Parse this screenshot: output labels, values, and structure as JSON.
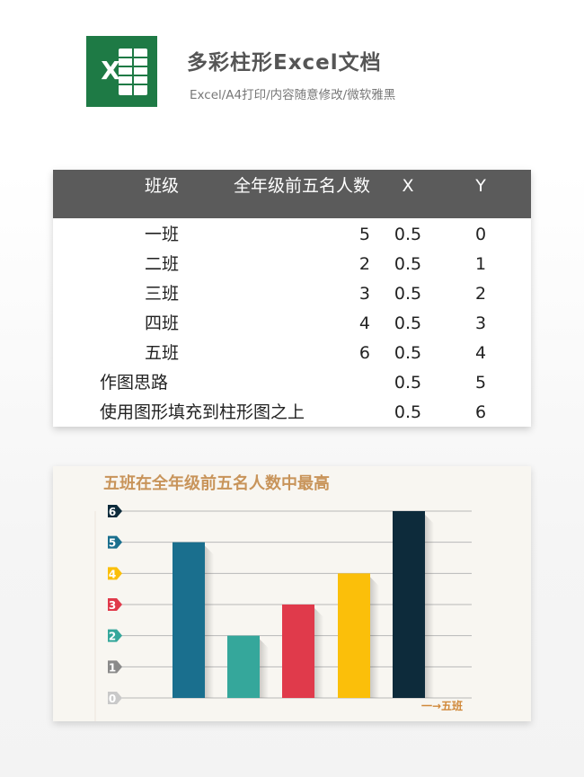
{
  "header": {
    "title": "多彩柱形Excel文档",
    "subtitle": "Excel/A4打印/内容随意修改/微软雅黑",
    "logo_letter": "X",
    "logo_color": "#1e7a45"
  },
  "table": {
    "columns": [
      "班级",
      "全年级前五名人数",
      "X",
      "Y"
    ],
    "rows": [
      {
        "class": "一班",
        "count": "5",
        "x": "0.5",
        "y": "0"
      },
      {
        "class": "二班",
        "count": "2",
        "x": "0.5",
        "y": "1"
      },
      {
        "class": "三班",
        "count": "3",
        "x": "0.5",
        "y": "2"
      },
      {
        "class": "四班",
        "count": "4",
        "x": "0.5",
        "y": "3"
      },
      {
        "class": "五班",
        "count": "6",
        "x": "0.5",
        "y": "4"
      }
    ],
    "notes": [
      {
        "label": "作图思路",
        "x": "0.5",
        "y": "5"
      },
      {
        "label": "使用图形填充到柱形图之上",
        "x": "0.5",
        "y": "6"
      }
    ],
    "header_bg": "#5b5b5b"
  },
  "chart_data": {
    "type": "bar",
    "title": "五班在全年级前五名人数中最高",
    "categories": [
      "一班",
      "二班",
      "三班",
      "四班",
      "五班"
    ],
    "values": [
      5,
      2,
      3,
      4,
      6
    ],
    "colors": [
      "#1a6f8e",
      "#35a79b",
      "#e03a4b",
      "#fbbf0a",
      "#0d2b3b"
    ],
    "ylim": [
      0,
      6
    ],
    "yticks": [
      "0",
      "1",
      "2",
      "3",
      "4",
      "5",
      "6"
    ],
    "ytick_colors": [
      "#c9c9c9",
      "#8a8a8a",
      "#35a79b",
      "#e03a4b",
      "#fbbf0a",
      "#1a6f8e",
      "#0d2b3b"
    ],
    "grid": true,
    "annotation": "一→五班"
  }
}
